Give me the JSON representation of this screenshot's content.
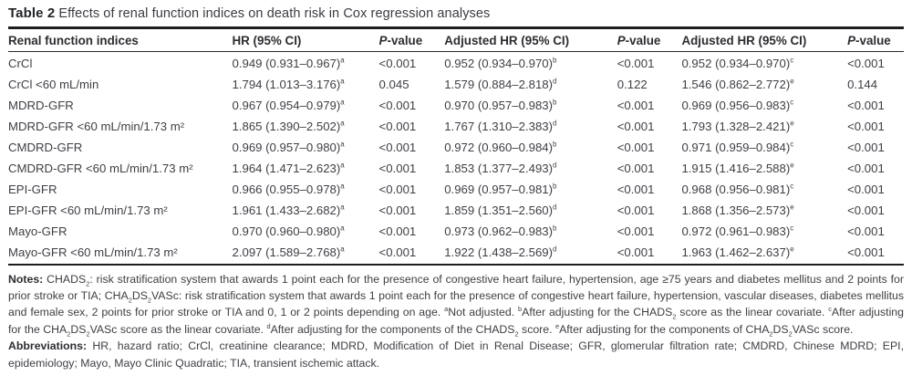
{
  "colors": {
    "background": "#ffffff",
    "text": "#3e3f44",
    "rule": "#1d1e20"
  },
  "table": {
    "title_bold": "Table 2",
    "title_rest": " Effects of renal function indices on death risk in Cox regression analyses",
    "columns": [
      {
        "label": "Renal function indices"
      },
      {
        "label": "HR (95% CI)"
      },
      {
        "italic": "P",
        "label": "-value"
      },
      {
        "label": "Adjusted HR (95% CI)"
      },
      {
        "italic": "P",
        "label": "-value"
      },
      {
        "label": "Adjusted HR (95% CI)"
      },
      {
        "italic": "P",
        "label": "-value"
      }
    ],
    "rows": [
      {
        "label": "CrCl",
        "cells": [
          {
            "v": "0.949 (0.931–0.967)",
            "s": "a"
          },
          {
            "v": "<0.001"
          },
          {
            "v": "0.952 (0.934–0.970)",
            "s": "b"
          },
          {
            "v": "<0.001"
          },
          {
            "v": "0.952 (0.934–0.970)",
            "s": "c"
          },
          {
            "v": "<0.001"
          }
        ]
      },
      {
        "label": "CrCl <60 mL/min",
        "cells": [
          {
            "v": "1.794 (1.013–3.176)",
            "s": "a"
          },
          {
            "v": "0.045"
          },
          {
            "v": "1.579 (0.884–2.818)",
            "s": "d"
          },
          {
            "v": "0.122"
          },
          {
            "v": "1.546 (0.862–2.772)",
            "s": "e"
          },
          {
            "v": "0.144"
          }
        ]
      },
      {
        "label": "MDRD-GFR",
        "cells": [
          {
            "v": "0.967 (0.954–0.979)",
            "s": "a"
          },
          {
            "v": "<0.001"
          },
          {
            "v": "0.970 (0.957–0.983)",
            "s": "b"
          },
          {
            "v": "<0.001"
          },
          {
            "v": "0.969 (0.956–0.983)",
            "s": "c"
          },
          {
            "v": "<0.001"
          }
        ]
      },
      {
        "label": "MDRD-GFR <60 mL/min/1.73 m²",
        "cells": [
          {
            "v": "1.865 (1.390–2.502)",
            "s": "a"
          },
          {
            "v": "<0.001"
          },
          {
            "v": "1.767 (1.310–2.383)",
            "s": "d"
          },
          {
            "v": "<0.001"
          },
          {
            "v": "1.793 (1.328–2.421)",
            "s": "e"
          },
          {
            "v": "<0.001"
          }
        ]
      },
      {
        "label": "CMDRD-GFR",
        "cells": [
          {
            "v": "0.969 (0.957–0.980)",
            "s": "a"
          },
          {
            "v": "<0.001"
          },
          {
            "v": "0.972 (0.960–0.984)",
            "s": "b"
          },
          {
            "v": "<0.001"
          },
          {
            "v": "0.971 (0.959–0.984)",
            "s": "c"
          },
          {
            "v": "<0.001"
          }
        ]
      },
      {
        "label": "CMDRD-GFR <60 mL/min/1.73 m²",
        "cells": [
          {
            "v": "1.964 (1.471–2.623)",
            "s": "a"
          },
          {
            "v": "<0.001"
          },
          {
            "v": "1.853 (1.377–2.493)",
            "s": "d"
          },
          {
            "v": "<0.001"
          },
          {
            "v": "1.915 (1.416–2.588)",
            "s": "e"
          },
          {
            "v": "<0.001"
          }
        ]
      },
      {
        "label": "EPI-GFR",
        "cells": [
          {
            "v": "0.966 (0.955–0.978)",
            "s": "a"
          },
          {
            "v": "<0.001"
          },
          {
            "v": "0.969 (0.957–0.981)",
            "s": "b"
          },
          {
            "v": "<0.001"
          },
          {
            "v": "0.968 (0.956–0.981)",
            "s": "c"
          },
          {
            "v": "<0.001"
          }
        ]
      },
      {
        "label": "EPI-GFR <60 mL/min/1.73 m²",
        "cells": [
          {
            "v": "1.961 (1.433–2.682)",
            "s": "a"
          },
          {
            "v": "<0.001"
          },
          {
            "v": "1.859 (1.351–2.560)",
            "s": "d"
          },
          {
            "v": "<0.001"
          },
          {
            "v": "1.868 (1.356–2.573)",
            "s": "e"
          },
          {
            "v": "<0.001"
          }
        ]
      },
      {
        "label": "Mayo-GFR",
        "cells": [
          {
            "v": "0.970 (0.960–0.980)",
            "s": "a"
          },
          {
            "v": "<0.001"
          },
          {
            "v": "0.973 (0.962–0.983)",
            "s": "b"
          },
          {
            "v": "<0.001"
          },
          {
            "v": "0.972 (0.961–0.983)",
            "s": "c"
          },
          {
            "v": "<0.001"
          }
        ]
      },
      {
        "label": "Mayo-GFR <60 mL/min/1.73 m²",
        "cells": [
          {
            "v": "2.097 (1.589–2.768)",
            "s": "a"
          },
          {
            "v": "<0.001"
          },
          {
            "v": "1.922 (1.438–2.569)",
            "s": "d"
          },
          {
            "v": "<0.001"
          },
          {
            "v": "1.963 (1.462–2.637)",
            "s": "e"
          },
          {
            "v": "<0.001"
          }
        ]
      }
    ]
  },
  "notes_segments": [
    {
      "b": "Notes: "
    },
    {
      "t": "CHADS"
    },
    {
      "sub": "2"
    },
    {
      "t": ": risk stratification system that awards 1 point each for the presence of congestive heart failure, hypertension, age ≥75 years and diabetes mellitus and 2 points for prior stroke or TIA; CHA"
    },
    {
      "sub": "2"
    },
    {
      "t": "DS"
    },
    {
      "sub": "2"
    },
    {
      "t": "VASc: risk stratification system that awards 1 point each for the presence of congestive heart failure, hypertension, vascular diseases, diabetes mellitus and female sex, 2 points for prior stroke or TIA and 0, 1 or 2 points depending on age. "
    },
    {
      "sup": "a"
    },
    {
      "t": "Not adjusted. "
    },
    {
      "sup": "b"
    },
    {
      "t": "After adjusting for the CHADS"
    },
    {
      "sub": "2"
    },
    {
      "t": " score as the linear covariate. "
    },
    {
      "sup": "c"
    },
    {
      "t": "After adjusting for the CHA"
    },
    {
      "sub": "2"
    },
    {
      "t": "DS"
    },
    {
      "sub": "2"
    },
    {
      "t": "VASc score as the linear covariate. "
    },
    {
      "sup": "d"
    },
    {
      "t": "After adjusting for the components of the CHADS"
    },
    {
      "sub": "2"
    },
    {
      "t": " score. "
    },
    {
      "sup": "e"
    },
    {
      "t": "After adjusting for the components of CHA"
    },
    {
      "sub": "2"
    },
    {
      "t": "DS"
    },
    {
      "sub": "2"
    },
    {
      "t": "VASc score."
    }
  ],
  "abbreviations_segments": [
    {
      "b": "Abbreviations: "
    },
    {
      "t": "HR, hazard ratio; CrCl, creatinine clearance; MDRD, Modification of Diet in Renal Disease; GFR, glomerular filtration rate; CMDRD, Chinese MDRD; EPI, epidemiology; Mayo, Mayo Clinic Quadratic; TIA, transient ischemic attack."
    }
  ]
}
